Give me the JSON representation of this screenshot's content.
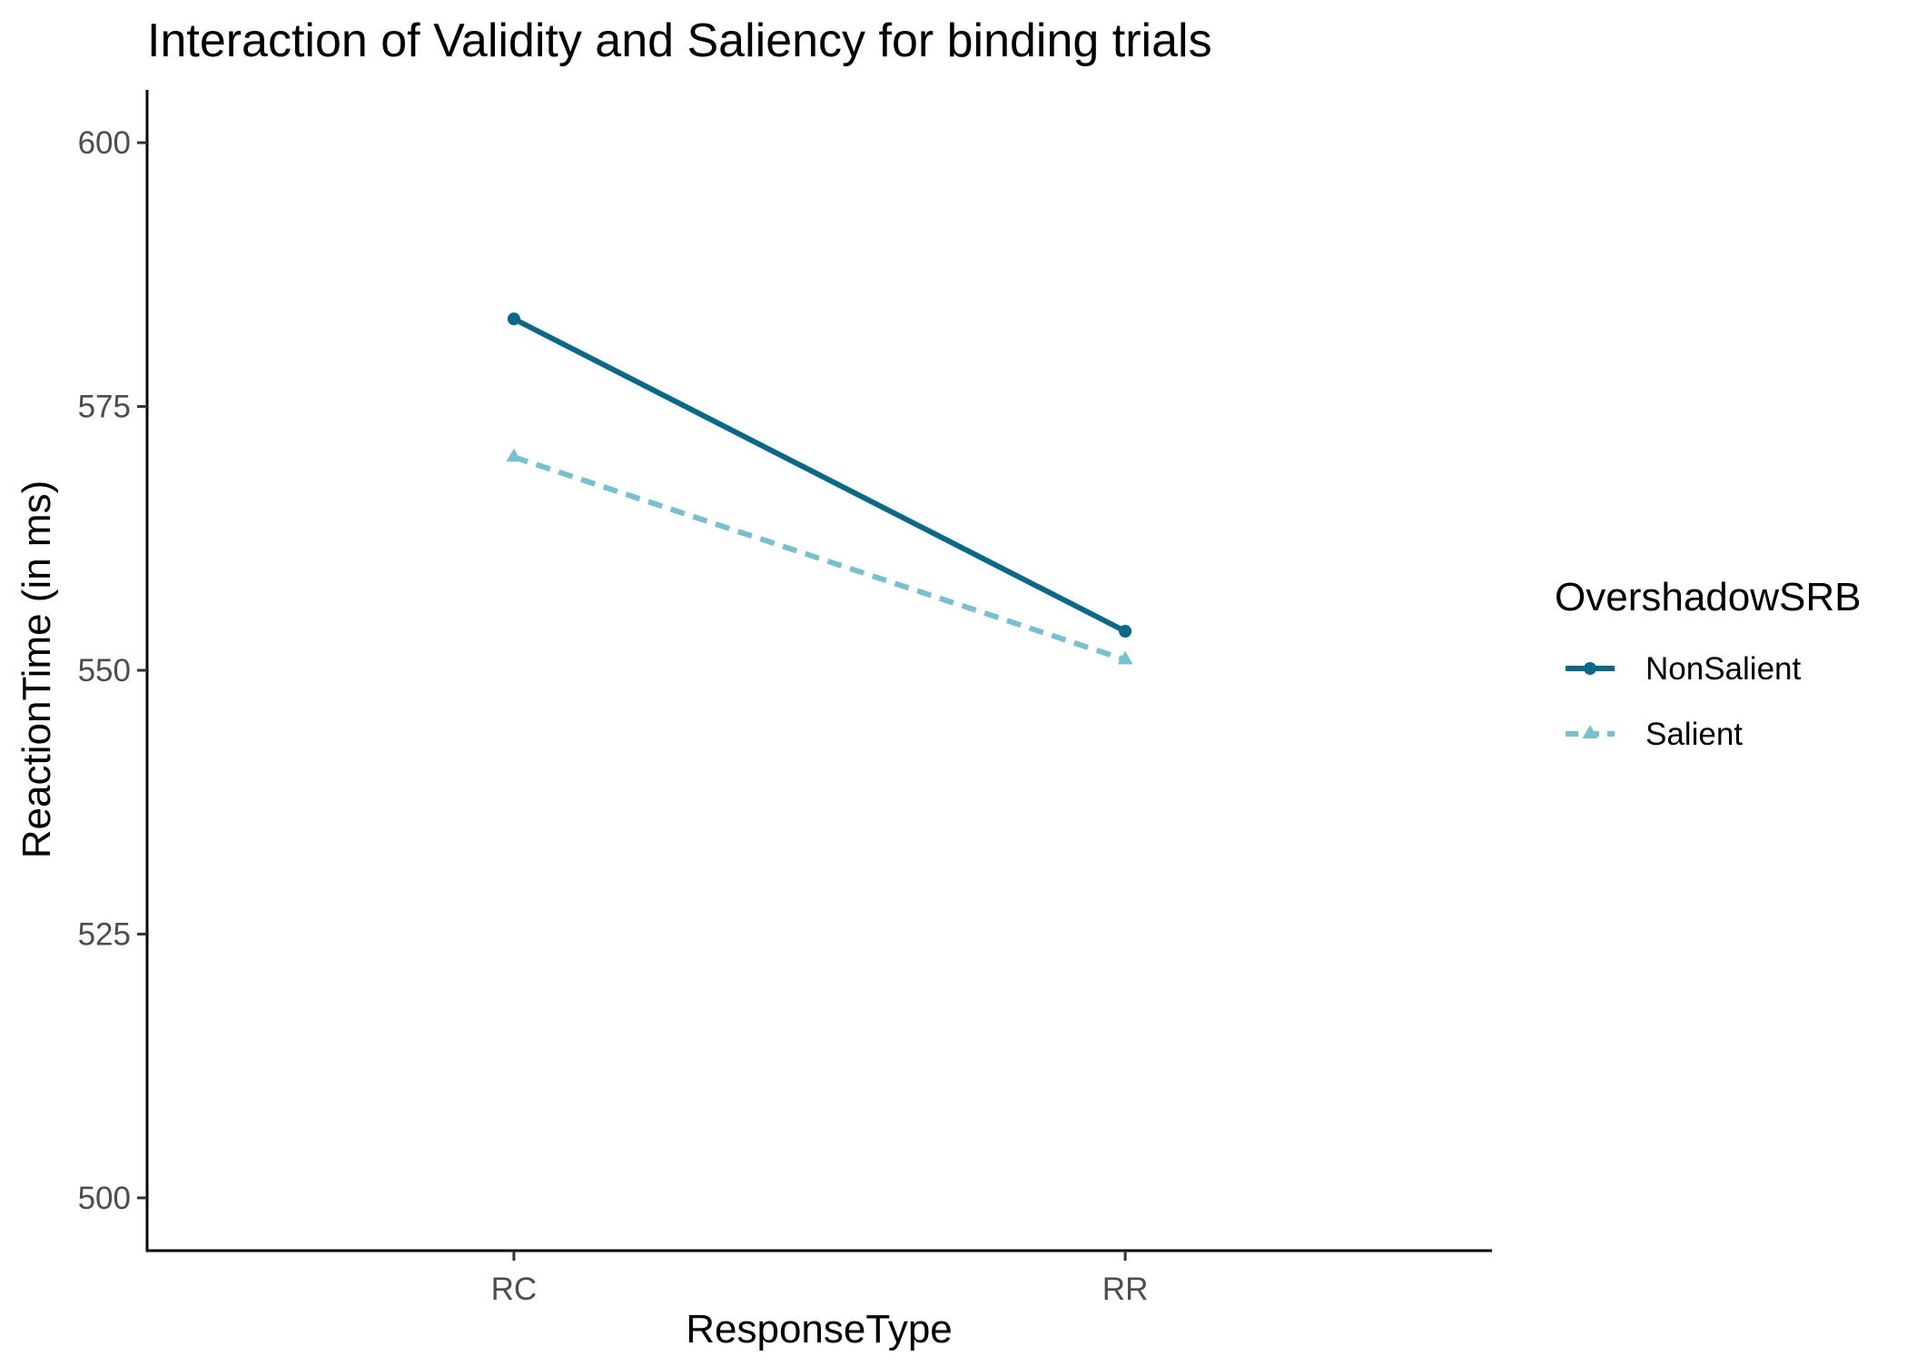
{
  "chart_data": {
    "type": "line",
    "title": "Interaction of Validity and Saliency for binding trials",
    "xlabel": "ResponseType",
    "ylabel": "ReactionTime (in ms)",
    "categories": [
      "RC",
      "RR"
    ],
    "ylim": [
      495,
      605
    ],
    "yticks": [
      500,
      525,
      550,
      575,
      600
    ],
    "legend": {
      "title": "OvershadowSRB",
      "placement": "right"
    },
    "series": [
      {
        "name": "NonSalient",
        "values": [
          583.3,
          553.7
        ],
        "color": "#076a8c",
        "line_style": "solid",
        "marker": "circle"
      },
      {
        "name": "Salient",
        "values": [
          570.2,
          551.0
        ],
        "color": "#76c1cf",
        "line_style": "dashed",
        "marker": "triangle"
      }
    ]
  }
}
